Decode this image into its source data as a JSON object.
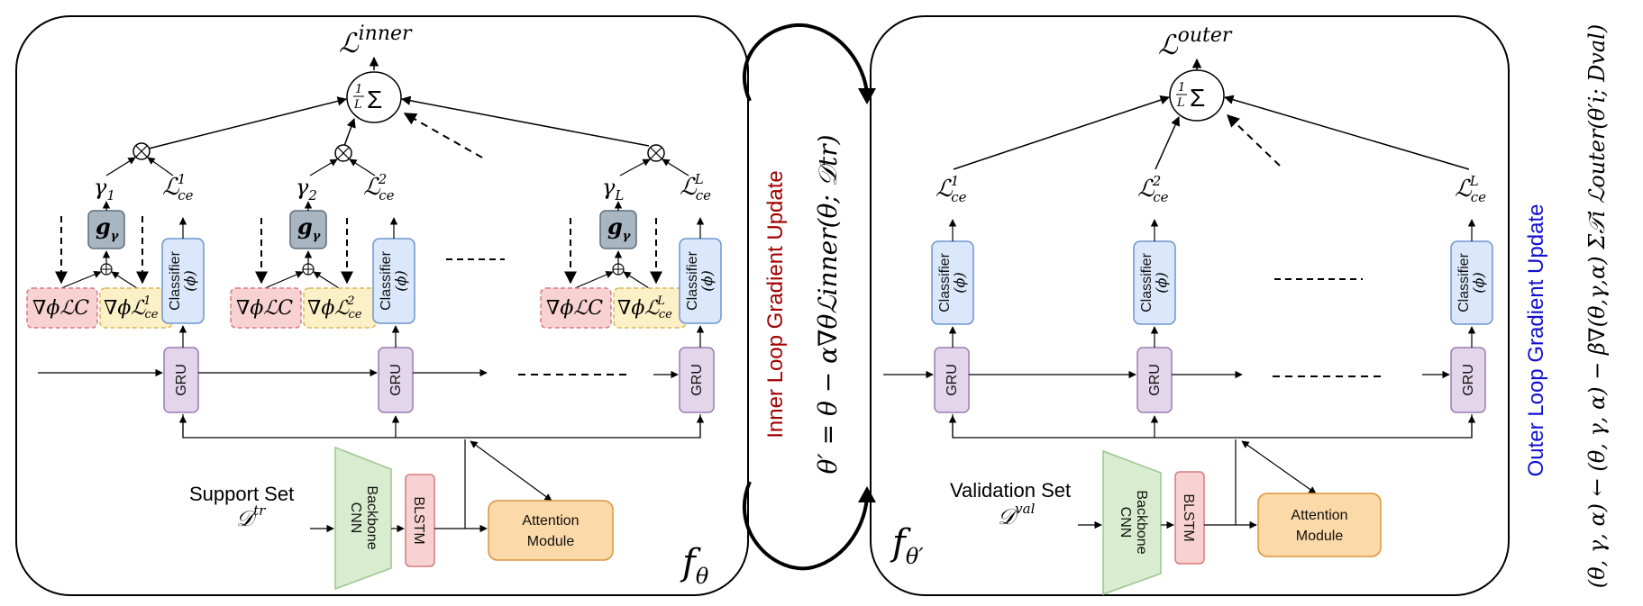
{
  "colors": {
    "gru_fill": "#e3d6ea",
    "gru_stroke": "#9b7bb0",
    "classifier_fill": "#dbe8fb",
    "classifier_stroke": "#6d95cf",
    "grad_c_fill": "#f8d2d2",
    "grad_c_stroke": "#d77a7a",
    "grad_ce_fill": "#fcf0c6",
    "grad_ce_stroke": "#d9b859",
    "g_fill": "#a8b6c2",
    "g_stroke": "#5e6e7c",
    "backbone_fill": "#d8ecd0",
    "backbone_stroke": "#9cc58d",
    "blstm_fill": "#f8d2d2",
    "blstm_stroke": "#d77a7a",
    "attention_fill": "#fbd9a8",
    "attention_stroke": "#d9953d",
    "inner_label": "#a00000",
    "outer_label": "#1010d0"
  },
  "left_panel": {
    "loss_title": "ℒ",
    "loss_sup": "inner",
    "sum_label": "1/L Σ",
    "gamma_labels": [
      "γ",
      "γ",
      "γ"
    ],
    "gamma_subs": [
      "1",
      "2",
      "L"
    ],
    "lce_labels": [
      "ℒ",
      "ℒ",
      "ℒ"
    ],
    "lce_subs": [
      "ce",
      "ce",
      "ce"
    ],
    "lce_sups": [
      "1",
      "2",
      "L"
    ],
    "g_label": "g",
    "g_sub": "γ",
    "grad_c_label": "∇ϕℒC",
    "grad_ce_labels": [
      "∇ϕℒ",
      "∇ϕℒ",
      "∇ϕℒ"
    ],
    "classifier_label": "Classifier",
    "classifier_param": "(ϕ)",
    "gru_label": "GRU",
    "support_set_label": "Support Set",
    "support_set_symbol": "𝒟",
    "support_set_sup": "tr",
    "backbone_label_1": "Backbone",
    "backbone_label_2": "CNN",
    "blstm_label": "BLSTM",
    "attention_label_1": "Attention",
    "attention_label_2": "Module",
    "f_label": "f",
    "f_sub": "θ"
  },
  "middle": {
    "title": "Inner Loop Gradient Update",
    "equation": "θ′ = θ − α∇θℒinner(θ; 𝒟tr)"
  },
  "right_panel": {
    "loss_title": "ℒ",
    "loss_sup": "outer",
    "sum_label": "1/L Σ",
    "lce_sups": [
      "1",
      "2",
      "L"
    ],
    "validation_set_label": "Validation Set",
    "validation_set_symbol": "𝒟",
    "validation_set_sup": "val",
    "f_label": "f",
    "f_sub": "θ′"
  },
  "right_side": {
    "title": "Outer Loop Gradient Update",
    "equation": "(θ, γ, α) ← (θ, γ, α) − β∇(θ,γ,α) Σ𝒯i ℒouter(θ′i; Dval)"
  }
}
